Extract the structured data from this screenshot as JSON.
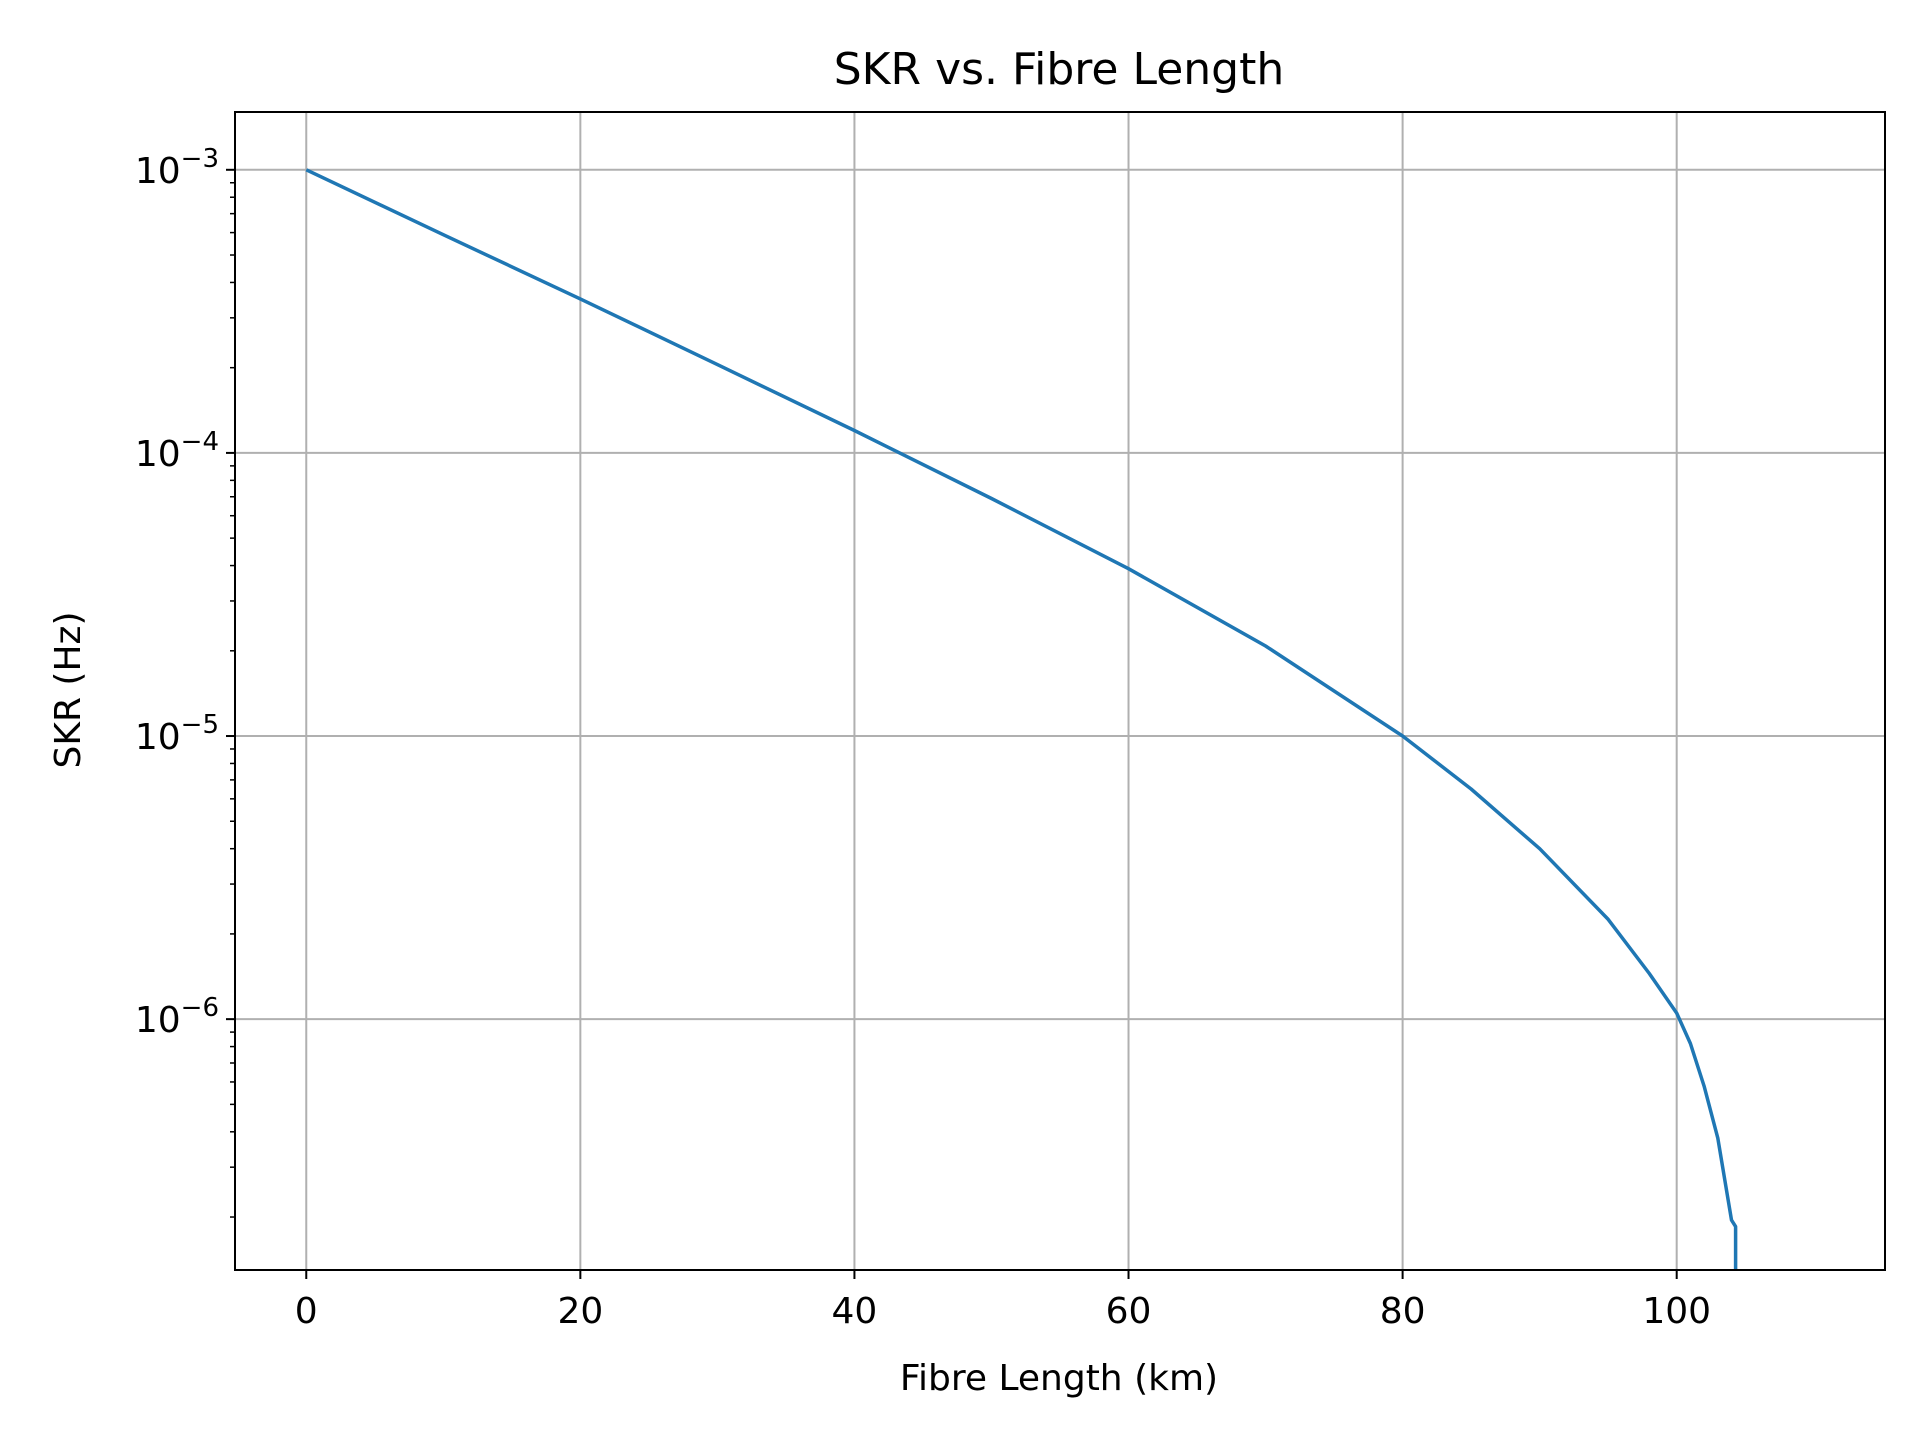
{
  "chart_data": {
    "type": "line",
    "title": "SKR vs. Fibre Length",
    "xlabel": "Fibre Length (km)",
    "ylabel": "SKR (Hz)",
    "xscale": "linear",
    "yscale": "log",
    "xlim": [
      -5.2,
      115.2
    ],
    "ylim": [
      1.3e-07,
      0.0016
    ],
    "grid": true,
    "legend": "none",
    "line_color": "#1f77b4",
    "x_ticks": [
      {
        "value": 0,
        "label": "0"
      },
      {
        "value": 20,
        "label": "20"
      },
      {
        "value": 40,
        "label": "40"
      },
      {
        "value": 60,
        "label": "60"
      },
      {
        "value": 80,
        "label": "80"
      },
      {
        "value": 100,
        "label": "100"
      }
    ],
    "y_ticks": [
      {
        "value": 0.001,
        "base": "10",
        "exp": "−3"
      },
      {
        "value": 0.0001,
        "base": "10",
        "exp": "−4"
      },
      {
        "value": 1e-05,
        "base": "10",
        "exp": "−5"
      },
      {
        "value": 1e-06,
        "base": "10",
        "exp": "−6"
      }
    ],
    "series": [
      {
        "x": [
          0,
          10,
          20,
          30,
          40,
          50,
          60,
          70,
          80,
          85,
          90,
          95,
          98,
          100,
          101,
          102,
          103,
          104,
          104.3,
          104.3
        ],
        "values": [
          0.001,
          0.00059,
          0.00035,
          0.000205,
          0.00012,
          6.9e-05,
          3.9e-05,
          2.08e-05,
          1e-05,
          6.5e-06,
          4e-06,
          2.25e-06,
          1.45e-06,
          1.05e-06,
          8.2e-07,
          5.8e-07,
          3.8e-07,
          1.95e-07,
          1.85e-07,
          1.3e-07
        ]
      }
    ]
  }
}
